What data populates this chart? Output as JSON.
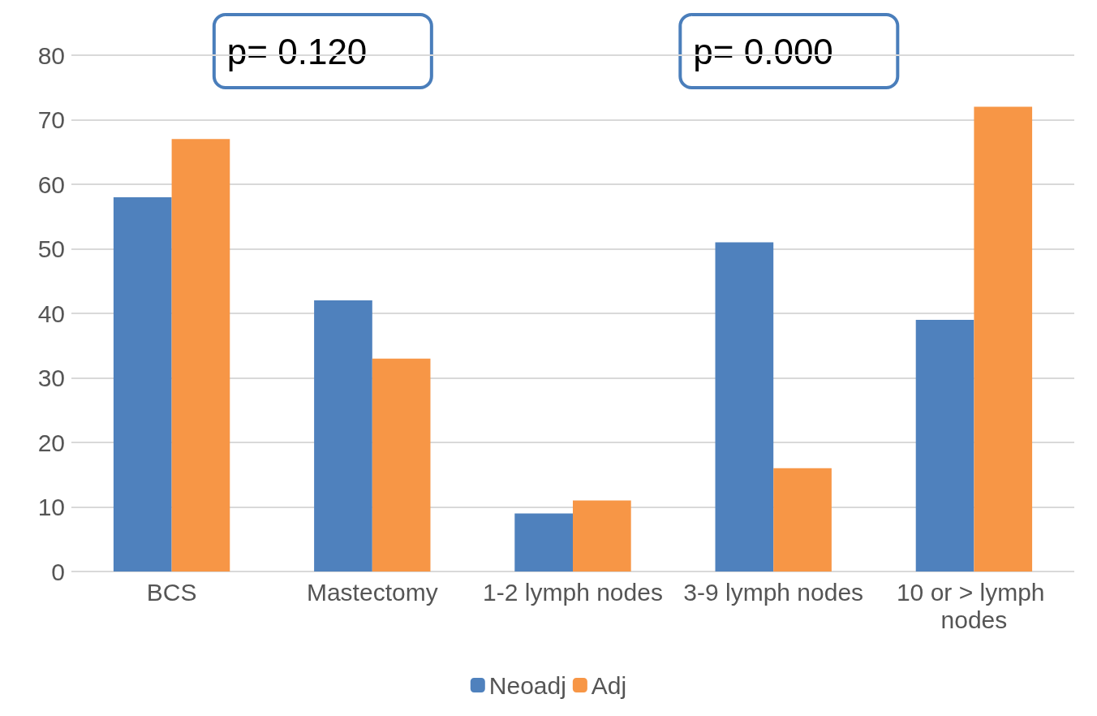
{
  "chart_data": {
    "type": "bar",
    "categories": [
      "BCS",
      "Mastectomy",
      "1-2 lymph nodes",
      "3-9 lymph nodes",
      "10 or > lymph nodes"
    ],
    "series": [
      {
        "name": "Neoadj",
        "color": "#4f81bd",
        "values": [
          58,
          42,
          9,
          51,
          39
        ]
      },
      {
        "name": "Adj",
        "color": "#f79646",
        "values": [
          67,
          33,
          11,
          16,
          72
        ]
      }
    ],
    "ylim": [
      0,
      80
    ],
    "yticks": [
      0,
      10,
      20,
      30,
      40,
      50,
      60,
      70,
      80
    ],
    "grid": "y",
    "legend": "bottom",
    "annotations": [
      "p= 0.120",
      "p= 0.000"
    ]
  }
}
